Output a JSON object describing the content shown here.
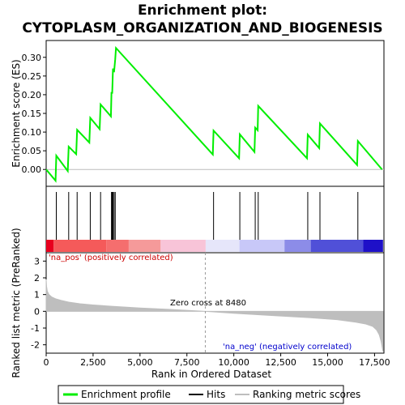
{
  "title_lines": [
    "Enrichment plot:",
    "CYTOPLASM_ORGANIZATION_AND_BIOGENESIS"
  ],
  "colors": {
    "es_line": "#00ee00",
    "hits": "#000000",
    "ranking_fill": "#bebebe",
    "pos_label": "#cc0000",
    "neg_label": "#0000cc",
    "zero_cross_line": "#999999"
  },
  "chart_data": [
    {
      "type": "line",
      "name": "enrichment-profile",
      "ylabel": "Enrichment score (ES)",
      "xlim": [
        0,
        18000
      ],
      "ylim": [
        -0.045,
        0.345
      ],
      "yticks": [
        "0.00",
        "0.05",
        "0.10",
        "0.15",
        "0.20",
        "0.25",
        "0.30"
      ],
      "x": [
        0,
        500,
        540,
        1150,
        1200,
        1600,
        1650,
        2300,
        2350,
        2850,
        2900,
        3450,
        3480,
        3520,
        3560,
        3600,
        3620,
        3680,
        3720,
        8880,
        8920,
        10280,
        10320,
        11100,
        11140,
        11270,
        11300,
        13900,
        13940,
        14550,
        14590,
        16570,
        16610,
        17900
      ],
      "y": [
        0.0,
        -0.03,
        0.037,
        -0.004,
        0.061,
        0.041,
        0.106,
        0.072,
        0.138,
        0.108,
        0.174,
        0.142,
        0.205,
        0.205,
        0.27,
        0.262,
        0.262,
        0.295,
        0.325,
        0.04,
        0.104,
        0.03,
        0.094,
        0.047,
        0.112,
        0.105,
        0.17,
        0.03,
        0.093,
        0.057,
        0.123,
        0.012,
        0.076,
        0.0
      ]
    },
    {
      "type": "scatter",
      "name": "hits",
      "x": [
        540,
        1200,
        1650,
        2350,
        2900,
        3480,
        3520,
        3560,
        3620,
        3680,
        8920,
        10320,
        11140,
        11300,
        13940,
        14590,
        16610
      ]
    },
    {
      "type": "heatmap",
      "name": "rank-color-bar",
      "segments": [
        {
          "x0": 0,
          "x1": 400,
          "color": "#e8001e"
        },
        {
          "x0": 400,
          "x1": 3200,
          "color": "#f55a5a"
        },
        {
          "x0": 3200,
          "x1": 4400,
          "color": "#f56e6e"
        },
        {
          "x0": 4400,
          "x1": 6100,
          "color": "#f59a9a"
        },
        {
          "x0": 6100,
          "x1": 8500,
          "color": "#f8c4d8"
        },
        {
          "x0": 8500,
          "x1": 10300,
          "color": "#e6e6fa"
        },
        {
          "x0": 10300,
          "x1": 12700,
          "color": "#c8c8f8"
        },
        {
          "x0": 12700,
          "x1": 14100,
          "color": "#8c8ce8"
        },
        {
          "x0": 14100,
          "x1": 16900,
          "color": "#5050d8"
        },
        {
          "x0": 16900,
          "x1": 17950,
          "color": "#1e10c8"
        }
      ]
    },
    {
      "type": "area",
      "name": "ranked-list-metric",
      "xlabel": "Rank in Ordered Dataset",
      "ylabel": "Ranked list metric (PreRanked)",
      "xlim": [
        0,
        18000
      ],
      "ylim": [
        -2.5,
        3.5
      ],
      "xticks": [
        "0",
        "2,500",
        "5,000",
        "7,500",
        "10,000",
        "12,500",
        "15,000",
        "17,500"
      ],
      "yticks": [
        "3",
        "2",
        "1",
        "0",
        "-1",
        "-2"
      ],
      "x": [
        0,
        20,
        60,
        150,
        300,
        500,
        800,
        1200,
        1800,
        2500,
        3500,
        5000,
        6500,
        8480,
        10000,
        12000,
        14000,
        15500,
        16500,
        17000,
        17400,
        17600,
        17750,
        17850,
        17950
      ],
      "y": [
        1.9,
        1.5,
        1.2,
        1.0,
        0.85,
        0.75,
        0.65,
        0.55,
        0.45,
        0.38,
        0.3,
        0.2,
        0.12,
        0.0,
        -0.12,
        -0.25,
        -0.38,
        -0.5,
        -0.65,
        -0.75,
        -0.9,
        -1.1,
        -1.4,
        -1.8,
        -2.4
      ],
      "zero_cross_label": "Zero cross at 8480",
      "zero_cross_x": 8480,
      "pos_label": "'na_pos' (positively correlated)",
      "neg_label": "'na_neg' (negatively correlated)"
    }
  ],
  "legend": {
    "items": [
      "Enrichment profile",
      "Hits",
      "Ranking metric scores"
    ]
  }
}
